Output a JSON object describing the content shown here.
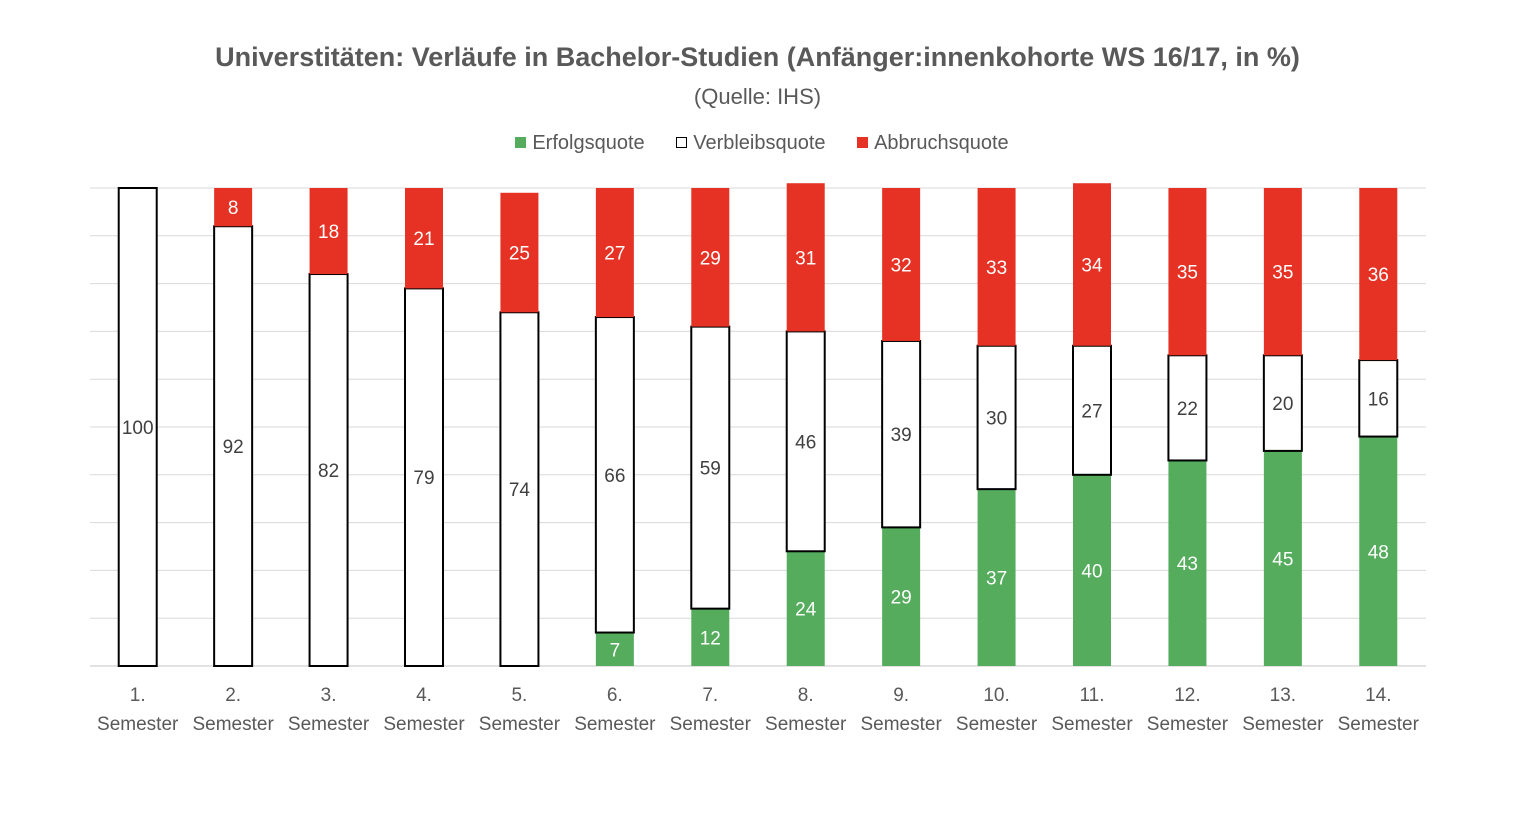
{
  "chart_data": {
    "type": "bar",
    "stacked": true,
    "title": "Universtitäten: Verläufe in Bachelor-Studien (Anfänger:innenkohorte WS 16/17, in %)",
    "subtitle": "(Quelle: IHS)",
    "categories": [
      [
        "1.",
        "Semester"
      ],
      [
        "2.",
        "Semester"
      ],
      [
        "3.",
        "Semester"
      ],
      [
        "4.",
        "Semester"
      ],
      [
        "5.",
        "Semester"
      ],
      [
        "6.",
        "Semester"
      ],
      [
        "7.",
        "Semester"
      ],
      [
        "8.",
        "Semester"
      ],
      [
        "9.",
        "Semester"
      ],
      [
        "10.",
        "Semester"
      ],
      [
        "11.",
        "Semester"
      ],
      [
        "12.",
        "Semester"
      ],
      [
        "13.",
        "Semester"
      ],
      [
        "14.",
        "Semester"
      ]
    ],
    "series": [
      {
        "name": "Erfolgsquote",
        "color": "#54ac5c",
        "border": "none",
        "label_color": "#ffffff",
        "values": [
          0,
          0,
          0,
          0,
          0,
          7,
          12,
          24,
          29,
          37,
          40,
          43,
          45,
          48
        ]
      },
      {
        "name": "Verbleibsquote",
        "color": "#ffffff",
        "border": "#000000",
        "label_color": "#404040",
        "values": [
          100,
          92,
          82,
          79,
          74,
          66,
          59,
          46,
          39,
          30,
          27,
          22,
          20,
          16
        ]
      },
      {
        "name": "Abbruchsquote",
        "color": "#e53224",
        "border": "none",
        "label_color": "#ffffff",
        "values": [
          0,
          8,
          18,
          21,
          25,
          27,
          29,
          31,
          32,
          33,
          34,
          35,
          35,
          36
        ]
      }
    ],
    "ylim": [
      0,
      100
    ],
    "grid": true,
    "y_axis_labels_shown": false,
    "legend_position": "top"
  }
}
